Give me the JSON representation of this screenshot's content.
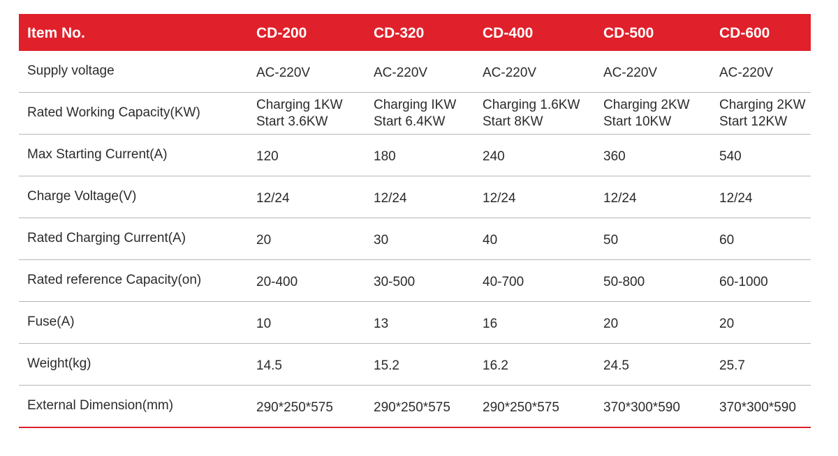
{
  "table": {
    "header": {
      "label": "Item No.",
      "models": [
        "CD-200",
        "CD-320",
        "CD-400",
        "CD-500",
        "CD-600"
      ]
    },
    "rows": [
      {
        "label": "Supply voltage",
        "values": [
          "AC-220V",
          "AC-220V",
          "AC-220V",
          "AC-220V",
          "AC-220V"
        ]
      },
      {
        "label": "Rated Working Capacity(KW)",
        "values": [
          [
            "Charging 1KW",
            "Start 3.6KW"
          ],
          [
            "Charging IKW",
            "Start 6.4KW"
          ],
          [
            "Charging 1.6KW",
            "Start 8KW"
          ],
          [
            "Charging 2KW",
            "Start 10KW"
          ],
          [
            "Charging 2KW",
            "Start 12KW"
          ]
        ]
      },
      {
        "label": "Max Starting Current(A)",
        "values": [
          "120",
          "180",
          "240",
          "360",
          "540"
        ]
      },
      {
        "label": "Charge Voltage(V)",
        "values": [
          "12/24",
          "12/24",
          "12/24",
          "12/24",
          "12/24"
        ]
      },
      {
        "label": "Rated Charging Current(A)",
        "values": [
          "20",
          "30",
          "40",
          "50",
          "60"
        ]
      },
      {
        "label": "Rated reference Capacity(on)",
        "values": [
          "20-400",
          "30-500",
          "40-700",
          "50-800",
          "60-1000"
        ]
      },
      {
        "label": "Fuse(A)",
        "values": [
          "10",
          "13",
          "16",
          "20",
          "20"
        ]
      },
      {
        "label": "Weight(kg)",
        "values": [
          "14.5",
          "15.2",
          "16.2",
          "24.5",
          "25.7"
        ]
      },
      {
        "label": "External Dimension(mm)",
        "values": [
          "290*250*575",
          "290*250*575",
          "290*250*575",
          "370*300*590",
          "370*300*590"
        ]
      }
    ]
  },
  "colors": {
    "header_background": "#e0202a",
    "header_text": "#ffffff",
    "body_text": "#2b2b2b",
    "row_divider": "#b7b7b7",
    "bottom_rule": "#e0202a"
  }
}
